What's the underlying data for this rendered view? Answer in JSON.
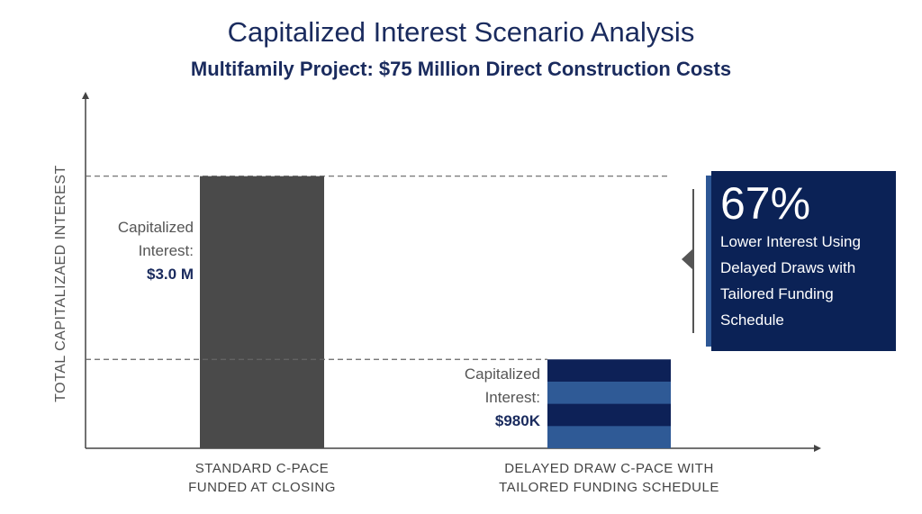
{
  "chart_data": {
    "type": "bar",
    "title": "Capitalized Interest Scenario Analysis",
    "subtitle": "Multifamily Project: $75 Million Direct Construction Costs",
    "y_label": "TOTAL CAPITALIZAED INTEREST",
    "categories": [
      "STANDARD C-PACE FUNDED AT CLOSING",
      "DELAYED DRAW C-PACE WITH TAILORED FUNDING SCHEDULE"
    ],
    "values": [
      3000000,
      980000
    ],
    "value_labels": [
      "$3.0 M",
      "$980K"
    ],
    "bar_label": "Capitalized Interest:",
    "colors": [
      "#4a4a4a",
      "#0d2157"
    ],
    "stripe_color": "#2f5a96",
    "ylim": [
      0,
      3900000
    ],
    "callout_title": "67%",
    "callout_text": "Lower Interest Using Delayed Draws with Tailored Funding Schedule"
  }
}
